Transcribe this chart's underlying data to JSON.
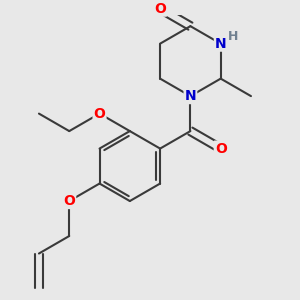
{
  "background_color": "#e8e8e8",
  "bond_color": "#3a3a3a",
  "bond_width": 1.5,
  "atom_colors": {
    "O": "#ff0000",
    "N": "#0000cc",
    "H": "#708090",
    "C": "#3a3a3a"
  },
  "figsize": [
    3.0,
    3.0
  ],
  "dpi": 100
}
